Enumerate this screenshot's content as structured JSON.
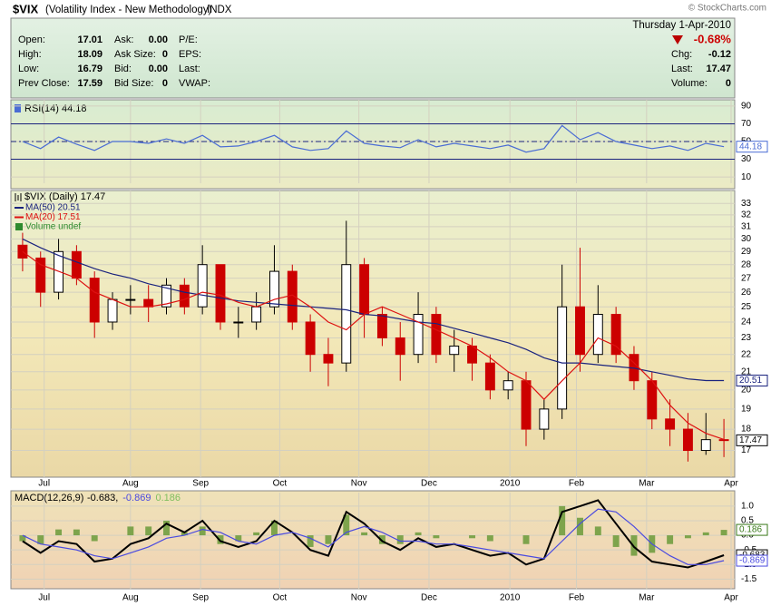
{
  "header": {
    "symbol": "$VIX",
    "name": "(Volatility Index - New Methodology)",
    "exchange": "INDX",
    "copyright": "© StockCharts.com",
    "date": "Thursday  1-Apr-2010",
    "change_pct": "-0.68%",
    "left": [
      [
        "Open:",
        "17.01"
      ],
      [
        "High:",
        "18.09"
      ],
      [
        "Low:",
        "16.79"
      ],
      [
        "Prev Close:",
        "17.59"
      ]
    ],
    "middle": [
      [
        "Ask:",
        "0.00"
      ],
      [
        "Ask Size:",
        "0"
      ],
      [
        "Bid:",
        "0.00"
      ],
      [
        "Bid Size:",
        "0"
      ]
    ],
    "right_labels": [
      "P/E:",
      "EPS:",
      "Last:",
      "VWAP:"
    ],
    "quote": [
      [
        "Chg:",
        "-0.12"
      ],
      [
        "Last:",
        "17.47"
      ],
      [
        "Volume:",
        "0"
      ]
    ]
  },
  "chart_data": [
    {
      "type": "line",
      "title": "RSI(14) 44.18",
      "ylim": [
        5,
        95
      ],
      "yticks": [
        10,
        30,
        50,
        70,
        90
      ],
      "bands": [
        30,
        70
      ],
      "midline": 50,
      "series": [
        {
          "name": "RSI(14)",
          "color": "#4a6cd4",
          "end_label": "44.18",
          "values": [
            50,
            42,
            55,
            47,
            40,
            50,
            50,
            48,
            53,
            48,
            57,
            44,
            45,
            50,
            57,
            44,
            40,
            42,
            62,
            48,
            45,
            43,
            52,
            44,
            48,
            45,
            42,
            46,
            38,
            42,
            68,
            52,
            60,
            50,
            46,
            42,
            45,
            40,
            48,
            44.18
          ]
        }
      ]
    },
    {
      "type": "candlestick",
      "title": "$VIX (Daily) 17.47",
      "end_label": "17.47",
      "log_scale": true,
      "grid": true,
      "xlim": [
        -0.5,
        39.5
      ],
      "xticks": [
        {
          "value": 1.2,
          "label": "Jul"
        },
        {
          "value": 6,
          "label": "Aug"
        },
        {
          "value": 9.9,
          "label": "Sep"
        },
        {
          "value": 14.3,
          "label": "Oct"
        },
        {
          "value": 18.7,
          "label": "Nov"
        },
        {
          "value": 22.6,
          "label": "Dec"
        },
        {
          "value": 27.1,
          "label": "2010"
        },
        {
          "value": 30.8,
          "label": "Feb"
        },
        {
          "value": 34.7,
          "label": "Mar"
        },
        {
          "value": 39.4,
          "label": "Apr"
        }
      ],
      "ylim": [
        15.9,
        34
      ],
      "yticks": [
        17,
        18,
        19,
        20,
        21,
        22,
        23,
        24,
        25,
        26,
        27,
        28,
        29,
        30,
        31,
        32,
        33
      ],
      "up_color": "#000000",
      "down_color": "#cc0000",
      "open": [
        29.5,
        28.5,
        26,
        29,
        27,
        24,
        25.5,
        25.5,
        25,
        26.5,
        25,
        28,
        24,
        24,
        25,
        27.5,
        24,
        22,
        21.5,
        28,
        24.5,
        23,
        22,
        24.5,
        22,
        22.5,
        21.5,
        20,
        20.5,
        18,
        19,
        25,
        22,
        24.5,
        22,
        20.5,
        18.5,
        18,
        17,
        17.5
      ],
      "high": [
        30.5,
        29,
        30,
        29.5,
        27.5,
        26,
        26.5,
        26.5,
        27,
        27,
        29.5,
        28,
        25,
        26,
        29.5,
        28,
        24.5,
        23,
        31.5,
        28.5,
        25,
        24,
        26,
        25,
        23.5,
        23,
        22,
        21,
        21,
        19.5,
        28,
        29.3,
        26.5,
        25,
        22.5,
        21,
        19.5,
        18.8,
        18.8,
        18.5
      ],
      "low": [
        27.5,
        25,
        25.5,
        26.5,
        23,
        23.5,
        24.5,
        24,
        24.5,
        24.5,
        24.5,
        23.5,
        23,
        23.5,
        24.5,
        23.5,
        21,
        20.2,
        21,
        23,
        22.5,
        20.5,
        21.5,
        21.5,
        21,
        20.5,
        19.5,
        19.5,
        17.2,
        17.5,
        18.5,
        21,
        21.5,
        21.5,
        20,
        18,
        17.2,
        16.5,
        16.8,
        16.7
      ],
      "close": [
        28.5,
        26,
        29,
        27,
        24,
        25.5,
        25.5,
        25,
        26.5,
        25,
        28,
        24,
        24,
        25,
        27.5,
        24,
        22,
        21.5,
        28,
        24.5,
        23,
        22,
        24.5,
        22,
        22.5,
        21.5,
        20,
        20.5,
        18,
        19,
        25,
        22,
        24.5,
        22,
        20.5,
        18.5,
        18,
        17,
        17.5,
        17.47
      ],
      "series": [
        {
          "name": "MA(50) 20.51",
          "color": "#1a237e",
          "end_label": "20.51",
          "values": [
            30,
            29.3,
            28.7,
            28.2,
            27.7,
            27.3,
            27,
            26.6,
            26.3,
            26,
            25.8,
            25.6,
            25.4,
            25.3,
            25.2,
            25.1,
            25,
            24.9,
            24.8,
            24.5,
            24.4,
            24.2,
            24,
            23.9,
            23.6,
            23.3,
            23,
            22.7,
            22.3,
            21.8,
            21.5,
            21.5,
            21.4,
            21.3,
            21.2,
            21,
            20.8,
            20.6,
            20.51,
            20.51
          ]
        },
        {
          "name": "MA(20) 17.51",
          "color": "#dd1111",
          "values": [
            29,
            28,
            27.5,
            27,
            26,
            25.5,
            25,
            25,
            25.2,
            25.5,
            26,
            25.8,
            25.3,
            25,
            25.5,
            25.8,
            25,
            24,
            23.5,
            24.5,
            25,
            24.5,
            24,
            23.5,
            23,
            22.5,
            21.8,
            21,
            20.5,
            19.5,
            20.5,
            21.5,
            23,
            22.5,
            21.5,
            20.5,
            19.2,
            18.3,
            17.8,
            17.51
          ]
        }
      ],
      "volume_legend": {
        "name": "Volume undef",
        "color": "#2e8b2e"
      }
    },
    {
      "type": "line",
      "title": "MACD(12,26,9)",
      "ylim": [
        -1.8,
        1.4
      ],
      "yticks": [
        {
          "value": 1,
          "label": "1.0"
        },
        {
          "value": 0.5,
          "label": "0.5"
        },
        {
          "value": 0,
          "label": "0.0"
        },
        {
          "value": -0.5,
          "label": "-0.5"
        },
        {
          "value": -1,
          "label": "-1.0"
        },
        {
          "value": -1.5,
          "label": "-1.5"
        }
      ],
      "series": [
        {
          "name": "-0.683,",
          "kind": "line",
          "color": "#000000",
          "end_label": "-0.683",
          "values": [
            -0.2,
            -0.6,
            -0.2,
            -0.3,
            -0.9,
            -0.8,
            -0.3,
            -0.1,
            0.4,
            0.1,
            0.5,
            -0.2,
            -0.4,
            -0.2,
            0.5,
            0.1,
            -0.5,
            -0.7,
            0.8,
            0.4,
            -0.2,
            -0.5,
            -0.1,
            -0.4,
            -0.3,
            -0.5,
            -0.7,
            -0.6,
            -1.0,
            -0.8,
            0.8,
            1.0,
            1.2,
            0.4,
            -0.4,
            -0.9,
            -1.0,
            -1.1,
            -0.9,
            -0.683
          ]
        },
        {
          "name": "-0.869",
          "kind": "line",
          "color": "#4a4ae0",
          "end_label": "-0.869",
          "values": [
            0,
            -0.3,
            -0.4,
            -0.5,
            -0.7,
            -0.8,
            -0.6,
            -0.4,
            -0.1,
            0,
            0.2,
            0.1,
            -0.2,
            -0.3,
            0,
            0.1,
            -0.1,
            -0.4,
            0.1,
            0.3,
            0.1,
            -0.2,
            -0.2,
            -0.3,
            -0.3,
            -0.4,
            -0.5,
            -0.6,
            -0.7,
            -0.8,
            -0.2,
            0.4,
            0.9,
            0.8,
            0.3,
            -0.3,
            -0.7,
            -1.0,
            -1.0,
            -0.869
          ]
        },
        {
          "name": "0.186",
          "kind": "bar",
          "color": "#6a9a3a",
          "end_label": "0.186",
          "values": [
            -0.2,
            -0.3,
            0.2,
            0.2,
            -0.2,
            0,
            0.3,
            0.3,
            0.5,
            0.1,
            0.3,
            -0.3,
            -0.2,
            0.1,
            0.5,
            0,
            -0.4,
            -0.3,
            0.7,
            0.1,
            -0.3,
            -0.3,
            0.1,
            -0.1,
            0,
            -0.1,
            -0.2,
            0,
            -0.3,
            0,
            1.0,
            0.6,
            0.3,
            -0.4,
            -0.7,
            -0.6,
            -0.3,
            -0.1,
            0.1,
            0.186
          ]
        }
      ]
    }
  ]
}
